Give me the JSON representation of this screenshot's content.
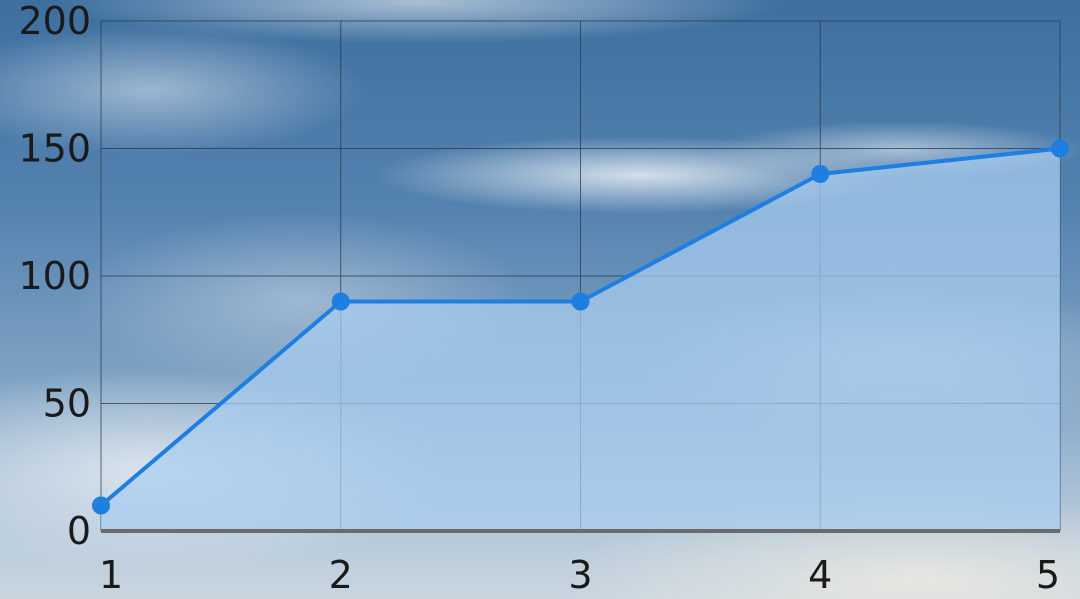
{
  "chart_data": {
    "type": "area",
    "title": "",
    "xlabel": "",
    "ylabel": "",
    "x": [
      1,
      2,
      3,
      4,
      5
    ],
    "series": [
      {
        "values": [
          10,
          90,
          90,
          140,
          150
        ]
      }
    ],
    "xlim": [
      1,
      5
    ],
    "ylim": [
      0,
      200
    ],
    "x_ticks": [
      "1",
      "2",
      "3",
      "4",
      "5"
    ],
    "y_ticks": [
      "0",
      "50",
      "100",
      "150",
      "200"
    ],
    "grid": true,
    "legend": "none",
    "colors": {
      "line": "#1e7fe0",
      "fill": "#a9cdf0",
      "grid": "#2a3a4a",
      "axis": "#6b6b6b",
      "tick_text": "#1a1a1a"
    }
  }
}
